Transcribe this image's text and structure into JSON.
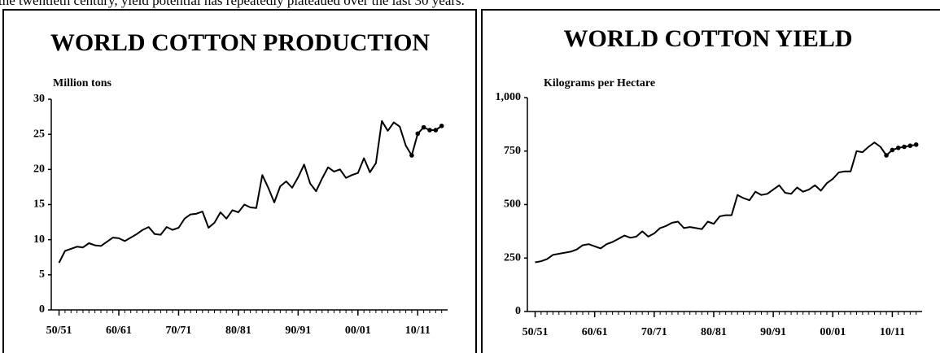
{
  "intro_text": "the twentieth century, yield potential has repeatedly plateaued over the last 30 years.",
  "chart_data": [
    {
      "type": "line",
      "title": "WORLD COTTON PRODUCTION",
      "y_label": "Million tons",
      "x": [
        1950,
        1951,
        1952,
        1953,
        1954,
        1955,
        1956,
        1957,
        1958,
        1959,
        1960,
        1961,
        1962,
        1963,
        1964,
        1965,
        1966,
        1967,
        1968,
        1969,
        1970,
        1971,
        1972,
        1973,
        1974,
        1975,
        1976,
        1977,
        1978,
        1979,
        1980,
        1981,
        1982,
        1983,
        1984,
        1985,
        1986,
        1987,
        1988,
        1989,
        1990,
        1991,
        1992,
        1993,
        1994,
        1995,
        1996,
        1997,
        1998,
        1999,
        2000,
        2001,
        2002,
        2003,
        2004,
        2005,
        2006,
        2007,
        2008,
        2009,
        2010,
        2011,
        2012,
        2013,
        2014
      ],
      "series": [
        {
          "color": "#000000",
          "markers": false,
          "values": [
            6.7,
            8.4,
            8.7,
            9.0,
            8.9,
            9.5,
            9.2,
            9.1,
            9.7,
            10.3,
            10.2,
            9.8,
            10.3,
            10.8,
            11.4,
            11.8,
            10.8,
            10.7,
            11.8,
            11.4,
            11.7,
            13.0,
            13.6,
            13.7,
            14.0,
            11.7,
            12.4,
            13.9,
            13.0,
            14.2,
            13.9,
            15.0,
            14.6,
            14.5,
            19.2,
            17.4,
            15.3,
            17.6,
            18.3,
            17.4,
            18.9,
            20.7,
            18.0,
            16.9,
            18.7,
            20.3,
            19.7,
            20.0,
            18.8,
            19.2,
            19.5,
            21.6,
            19.6,
            20.9,
            26.9,
            25.5,
            26.7,
            26.1,
            23.4,
            22.0,
            null,
            null,
            null,
            null,
            null
          ]
        },
        {
          "color": "#000000",
          "markers": true,
          "values": [
            null,
            null,
            null,
            null,
            null,
            null,
            null,
            null,
            null,
            null,
            null,
            null,
            null,
            null,
            null,
            null,
            null,
            null,
            null,
            null,
            null,
            null,
            null,
            null,
            null,
            null,
            null,
            null,
            null,
            null,
            null,
            null,
            null,
            null,
            null,
            null,
            null,
            null,
            null,
            null,
            null,
            null,
            null,
            null,
            null,
            null,
            null,
            null,
            null,
            null,
            null,
            null,
            null,
            null,
            null,
            null,
            null,
            null,
            null,
            22.0,
            25.1,
            26.0,
            25.6,
            25.6,
            26.2
          ]
        }
      ],
      "xlim": [
        1948.7,
        2015
      ],
      "xticks": [
        {
          "value": 1950,
          "label": "50/51"
        },
        {
          "value": 1960,
          "label": "60/61"
        },
        {
          "value": 1970,
          "label": "70/71"
        },
        {
          "value": 1980,
          "label": "80/81"
        },
        {
          "value": 1990,
          "label": "90/91"
        },
        {
          "value": 2000,
          "label": "00/01"
        },
        {
          "value": 2010,
          "label": "10/11"
        }
      ],
      "ylim": [
        0,
        30
      ],
      "yticks": [
        0,
        5,
        10,
        15,
        20,
        25,
        30
      ]
    },
    {
      "type": "line",
      "title": "WORLD COTTON YIELD",
      "y_label": "Kilograms per Hectare",
      "x": [
        1950,
        1951,
        1952,
        1953,
        1954,
        1955,
        1956,
        1957,
        1958,
        1959,
        1960,
        1961,
        1962,
        1963,
        1964,
        1965,
        1966,
        1967,
        1968,
        1969,
        1970,
        1971,
        1972,
        1973,
        1974,
        1975,
        1976,
        1977,
        1978,
        1979,
        1980,
        1981,
        1982,
        1983,
        1984,
        1985,
        1986,
        1987,
        1988,
        1989,
        1990,
        1991,
        1992,
        1993,
        1994,
        1995,
        1996,
        1997,
        1998,
        1999,
        2000,
        2001,
        2002,
        2003,
        2004,
        2005,
        2006,
        2007,
        2008,
        2009,
        2010,
        2011,
        2012,
        2013,
        2014
      ],
      "series": [
        {
          "color": "#000000",
          "markers": false,
          "values": [
            230,
            235,
            245,
            265,
            270,
            275,
            280,
            290,
            310,
            315,
            305,
            295,
            315,
            325,
            340,
            355,
            345,
            350,
            375,
            350,
            365,
            390,
            400,
            415,
            420,
            390,
            395,
            390,
            385,
            420,
            410,
            445,
            450,
            450,
            545,
            530,
            520,
            560,
            545,
            550,
            570,
            590,
            555,
            550,
            580,
            560,
            570,
            590,
            565,
            600,
            620,
            650,
            655,
            655,
            750,
            745,
            770,
            790,
            770,
            730,
            null,
            null,
            null,
            null,
            null
          ]
        },
        {
          "color": "#000000",
          "markers": true,
          "values": [
            null,
            null,
            null,
            null,
            null,
            null,
            null,
            null,
            null,
            null,
            null,
            null,
            null,
            null,
            null,
            null,
            null,
            null,
            null,
            null,
            null,
            null,
            null,
            null,
            null,
            null,
            null,
            null,
            null,
            null,
            null,
            null,
            null,
            null,
            null,
            null,
            null,
            null,
            null,
            null,
            null,
            null,
            null,
            null,
            null,
            null,
            null,
            null,
            null,
            null,
            null,
            null,
            null,
            null,
            null,
            null,
            null,
            null,
            null,
            730,
            755,
            765,
            770,
            775,
            780
          ]
        }
      ],
      "xlim": [
        1948.7,
        2015
      ],
      "xticks": [
        {
          "value": 1950,
          "label": "50/51"
        },
        {
          "value": 1960,
          "label": "60/61"
        },
        {
          "value": 1970,
          "label": "70/71"
        },
        {
          "value": 1980,
          "label": "80/81"
        },
        {
          "value": 1990,
          "label": "90/91"
        },
        {
          "value": 2000,
          "label": "00/01"
        },
        {
          "value": 2010,
          "label": "10/11"
        }
      ],
      "ylim": [
        0,
        1000
      ],
      "yticks": [
        0,
        250,
        500,
        750,
        {
          "value": 1000,
          "label": "1,000"
        }
      ]
    }
  ]
}
